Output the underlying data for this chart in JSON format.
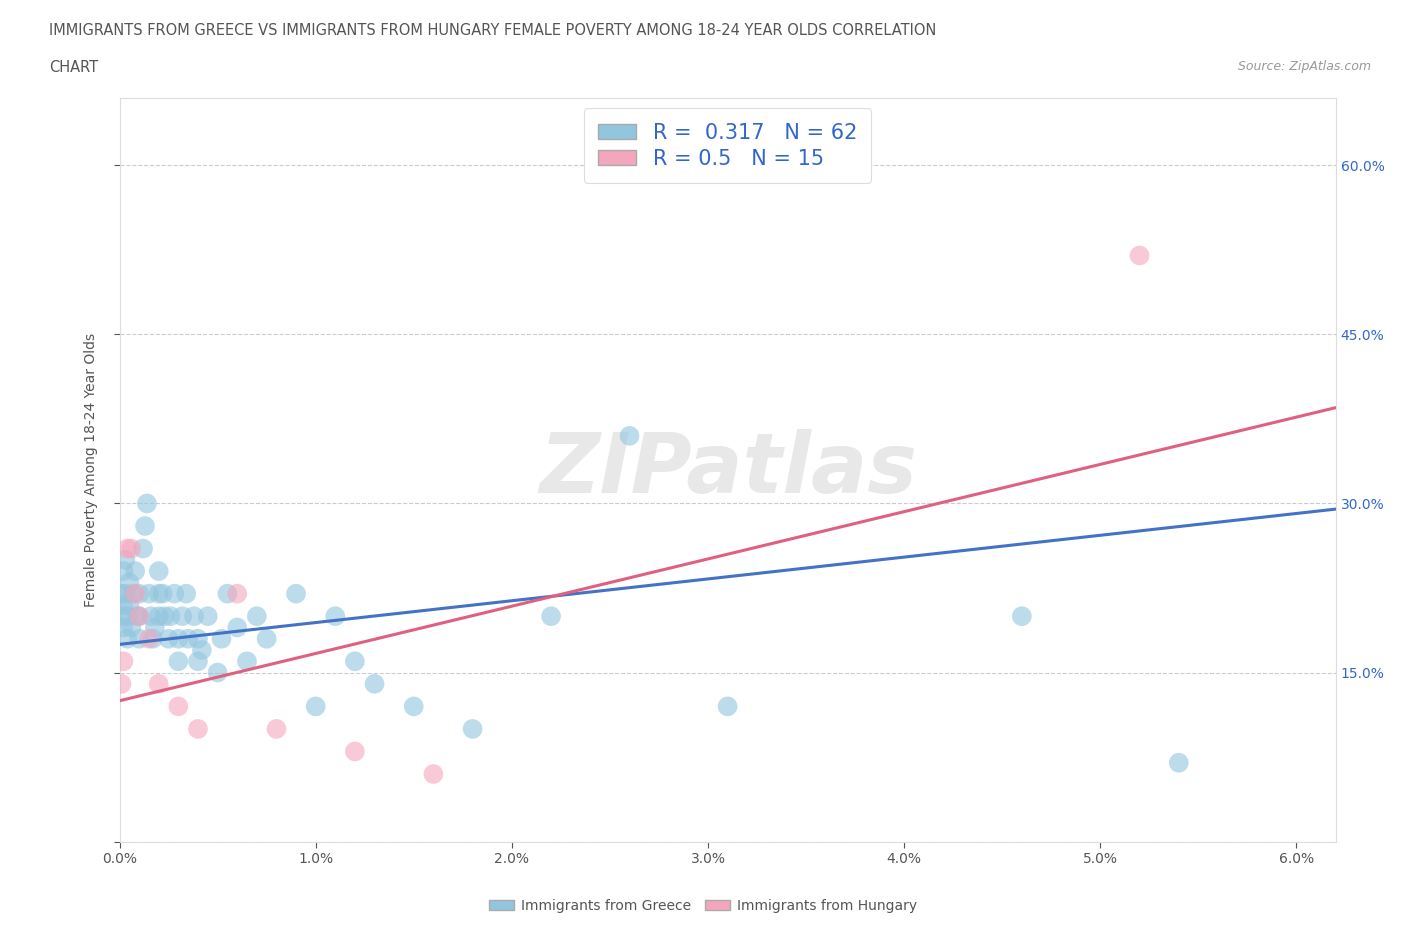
{
  "title_line1": "IMMIGRANTS FROM GREECE VS IMMIGRANTS FROM HUNGARY FEMALE POVERTY AMONG 18-24 YEAR OLDS CORRELATION",
  "title_line2": "CHART",
  "source": "Source: ZipAtlas.com",
  "ylabel": "Female Poverty Among 18-24 Year Olds",
  "xlim": [
    0.0,
    0.062
  ],
  "ylim": [
    0.0,
    0.66
  ],
  "xtick_vals": [
    0.0,
    0.01,
    0.02,
    0.03,
    0.04,
    0.05,
    0.06
  ],
  "xtick_labels": [
    "0.0%",
    "1.0%",
    "2.0%",
    "3.0%",
    "4.0%",
    "5.0%",
    "6.0%"
  ],
  "ytick_vals": [
    0.0,
    0.15,
    0.3,
    0.45,
    0.6
  ],
  "ytick_labels": [
    "",
    "15.0%",
    "30.0%",
    "45.0%",
    "60.0%"
  ],
  "greece_color": "#92C5DE",
  "hungary_color": "#F4A6BD",
  "greece_line_color": "#4472C4",
  "hungary_line_color": "#E06080",
  "R_greece": 0.317,
  "N_greece": 62,
  "R_hungary": 0.5,
  "N_hungary": 15,
  "legend_R_color": "#3366CC",
  "watermark_text": "ZIPatlas",
  "greece_x": [
    0.0001,
    0.0001,
    0.0002,
    0.0002,
    0.0002,
    0.0003,
    0.0003,
    0.0004,
    0.0004,
    0.0005,
    0.0005,
    0.0006,
    0.0007,
    0.0008,
    0.0009,
    0.001,
    0.001,
    0.001,
    0.0012,
    0.0013,
    0.0014,
    0.0015,
    0.0016,
    0.0017,
    0.0018,
    0.002,
    0.002,
    0.002,
    0.0022,
    0.0023,
    0.0025,
    0.0026,
    0.0028,
    0.003,
    0.003,
    0.0032,
    0.0034,
    0.0035,
    0.0038,
    0.004,
    0.004,
    0.0042,
    0.0045,
    0.005,
    0.0052,
    0.0055,
    0.006,
    0.0065,
    0.007,
    0.0075,
    0.009,
    0.01,
    0.011,
    0.012,
    0.013,
    0.015,
    0.018,
    0.022,
    0.026,
    0.031,
    0.046,
    0.054
  ],
  "greece_y": [
    0.22,
    0.2,
    0.24,
    0.21,
    0.19,
    0.25,
    0.22,
    0.2,
    0.18,
    0.23,
    0.21,
    0.19,
    0.22,
    0.24,
    0.2,
    0.22,
    0.2,
    0.18,
    0.26,
    0.28,
    0.3,
    0.22,
    0.2,
    0.18,
    0.19,
    0.22,
    0.2,
    0.24,
    0.22,
    0.2,
    0.18,
    0.2,
    0.22,
    0.18,
    0.16,
    0.2,
    0.22,
    0.18,
    0.2,
    0.16,
    0.18,
    0.17,
    0.2,
    0.15,
    0.18,
    0.22,
    0.19,
    0.16,
    0.2,
    0.18,
    0.22,
    0.12,
    0.2,
    0.16,
    0.14,
    0.12,
    0.1,
    0.2,
    0.36,
    0.12,
    0.2,
    0.07
  ],
  "hungary_x": [
    0.0001,
    0.0002,
    0.0004,
    0.0006,
    0.0008,
    0.001,
    0.0015,
    0.002,
    0.003,
    0.004,
    0.006,
    0.008,
    0.012,
    0.016,
    0.052
  ],
  "hungary_y": [
    0.14,
    0.16,
    0.26,
    0.26,
    0.22,
    0.2,
    0.18,
    0.14,
    0.12,
    0.1,
    0.22,
    0.1,
    0.08,
    0.06,
    0.52
  ],
  "greece_trend_x0": 0.0,
  "greece_trend_y0": 0.175,
  "greece_trend_x1": 0.062,
  "greece_trend_y1": 0.295,
  "hungary_trend_x0": 0.0,
  "hungary_trend_y0": 0.125,
  "hungary_trend_x1": 0.062,
  "hungary_trend_y1": 0.385
}
